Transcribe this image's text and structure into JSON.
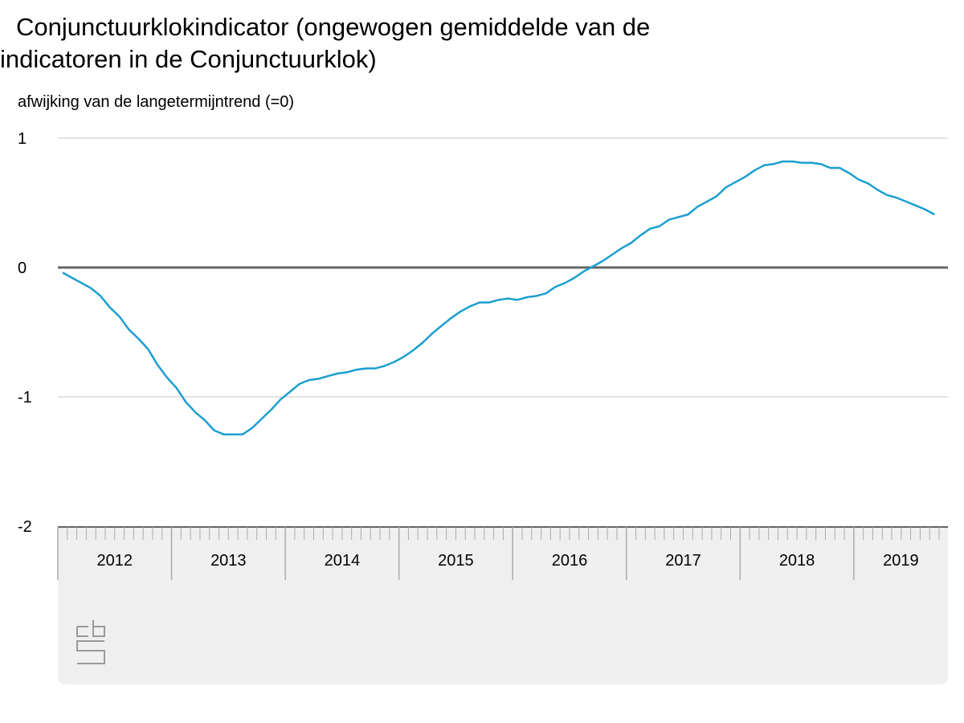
{
  "title_line1": "Conjunctuurklokindicator (ongewogen gemiddelde van de",
  "title_line2": "indicatoren in de Conjunctuurklok)",
  "colors": {
    "line": "#1a9fd0",
    "zero_line": "#666666",
    "grid": "#c8c8c8",
    "band": "#efefef"
  },
  "logo": {
    "icon": "cbs-logo-icon"
  },
  "chart_data": {
    "type": "line",
    "title": "Conjunctuurklokindicator (ongewogen gemiddelde van de indicatoren in de Conjunctuurklok)",
    "ylabel": "afwijking van de langetermijntrend (=0)",
    "xlabel": "",
    "ylim": [
      -2,
      1
    ],
    "yticks": [
      1,
      0,
      -1,
      -2
    ],
    "ytick_labels": [
      "1",
      "0",
      "-1",
      "-2"
    ],
    "xlim": [
      2012.0,
      2019.75
    ],
    "years": [
      "2012",
      "2013",
      "2014",
      "2015",
      "2016",
      "2017",
      "2018",
      "2019"
    ],
    "grid": true,
    "series": [
      {
        "values": [
          [
            2012.0,
            -0.04
          ],
          [
            2012.083,
            -0.08
          ],
          [
            2012.167,
            -0.12
          ],
          [
            2012.25,
            -0.16
          ],
          [
            2012.333,
            -0.22
          ],
          [
            2012.417,
            -0.31
          ],
          [
            2012.5,
            -0.38
          ],
          [
            2012.583,
            -0.48
          ],
          [
            2012.667,
            -0.55
          ],
          [
            2012.75,
            -0.63
          ],
          [
            2012.833,
            -0.75
          ],
          [
            2012.917,
            -0.85
          ],
          [
            2013.0,
            -0.93
          ],
          [
            2013.083,
            -1.04
          ],
          [
            2013.167,
            -1.12
          ],
          [
            2013.25,
            -1.18
          ],
          [
            2013.333,
            -1.26
          ],
          [
            2013.417,
            -1.29
          ],
          [
            2013.5,
            -1.29
          ],
          [
            2013.583,
            -1.29
          ],
          [
            2013.667,
            -1.24
          ],
          [
            2013.75,
            -1.17
          ],
          [
            2013.833,
            -1.1
          ],
          [
            2013.917,
            -1.02
          ],
          [
            2014.0,
            -0.96
          ],
          [
            2014.083,
            -0.9
          ],
          [
            2014.167,
            -0.87
          ],
          [
            2014.25,
            -0.86
          ],
          [
            2014.333,
            -0.84
          ],
          [
            2014.417,
            -0.82
          ],
          [
            2014.5,
            -0.81
          ],
          [
            2014.583,
            -0.79
          ],
          [
            2014.667,
            -0.78
          ],
          [
            2014.75,
            -0.78
          ],
          [
            2014.833,
            -0.76
          ],
          [
            2014.917,
            -0.73
          ],
          [
            2015.0,
            -0.69
          ],
          [
            2015.083,
            -0.64
          ],
          [
            2015.167,
            -0.58
          ],
          [
            2015.25,
            -0.51
          ],
          [
            2015.333,
            -0.45
          ],
          [
            2015.417,
            -0.39
          ],
          [
            2015.5,
            -0.34
          ],
          [
            2015.583,
            -0.3
          ],
          [
            2015.667,
            -0.27
          ],
          [
            2015.75,
            -0.27
          ],
          [
            2015.833,
            -0.25
          ],
          [
            2015.917,
            -0.24
          ],
          [
            2016.0,
            -0.25
          ],
          [
            2016.083,
            -0.23
          ],
          [
            2016.167,
            -0.22
          ],
          [
            2016.25,
            -0.2
          ],
          [
            2016.333,
            -0.15
          ],
          [
            2016.417,
            -0.12
          ],
          [
            2016.5,
            -0.08
          ],
          [
            2016.583,
            -0.03
          ],
          [
            2016.667,
            0.01
          ],
          [
            2016.75,
            0.05
          ],
          [
            2016.833,
            0.1
          ],
          [
            2016.917,
            0.15
          ],
          [
            2017.0,
            0.19
          ],
          [
            2017.083,
            0.25
          ],
          [
            2017.167,
            0.3
          ],
          [
            2017.25,
            0.32
          ],
          [
            2017.333,
            0.37
          ],
          [
            2017.417,
            0.39
          ],
          [
            2017.5,
            0.41
          ],
          [
            2017.583,
            0.47
          ],
          [
            2017.667,
            0.51
          ],
          [
            2017.75,
            0.55
          ],
          [
            2017.833,
            0.62
          ],
          [
            2017.917,
            0.66
          ],
          [
            2018.0,
            0.7
          ],
          [
            2018.083,
            0.75
          ],
          [
            2018.167,
            0.79
          ],
          [
            2018.25,
            0.8
          ],
          [
            2018.333,
            0.82
          ],
          [
            2018.417,
            0.82
          ],
          [
            2018.5,
            0.81
          ],
          [
            2018.583,
            0.81
          ],
          [
            2018.667,
            0.8
          ],
          [
            2018.75,
            0.77
          ],
          [
            2018.833,
            0.77
          ],
          [
            2018.917,
            0.73
          ],
          [
            2019.0,
            0.68
          ],
          [
            2019.083,
            0.65
          ],
          [
            2019.167,
            0.6
          ],
          [
            2019.25,
            0.56
          ],
          [
            2019.333,
            0.54
          ],
          [
            2019.417,
            0.51
          ],
          [
            2019.5,
            0.48
          ],
          [
            2019.583,
            0.45
          ],
          [
            2019.667,
            0.41
          ]
        ]
      }
    ]
  }
}
